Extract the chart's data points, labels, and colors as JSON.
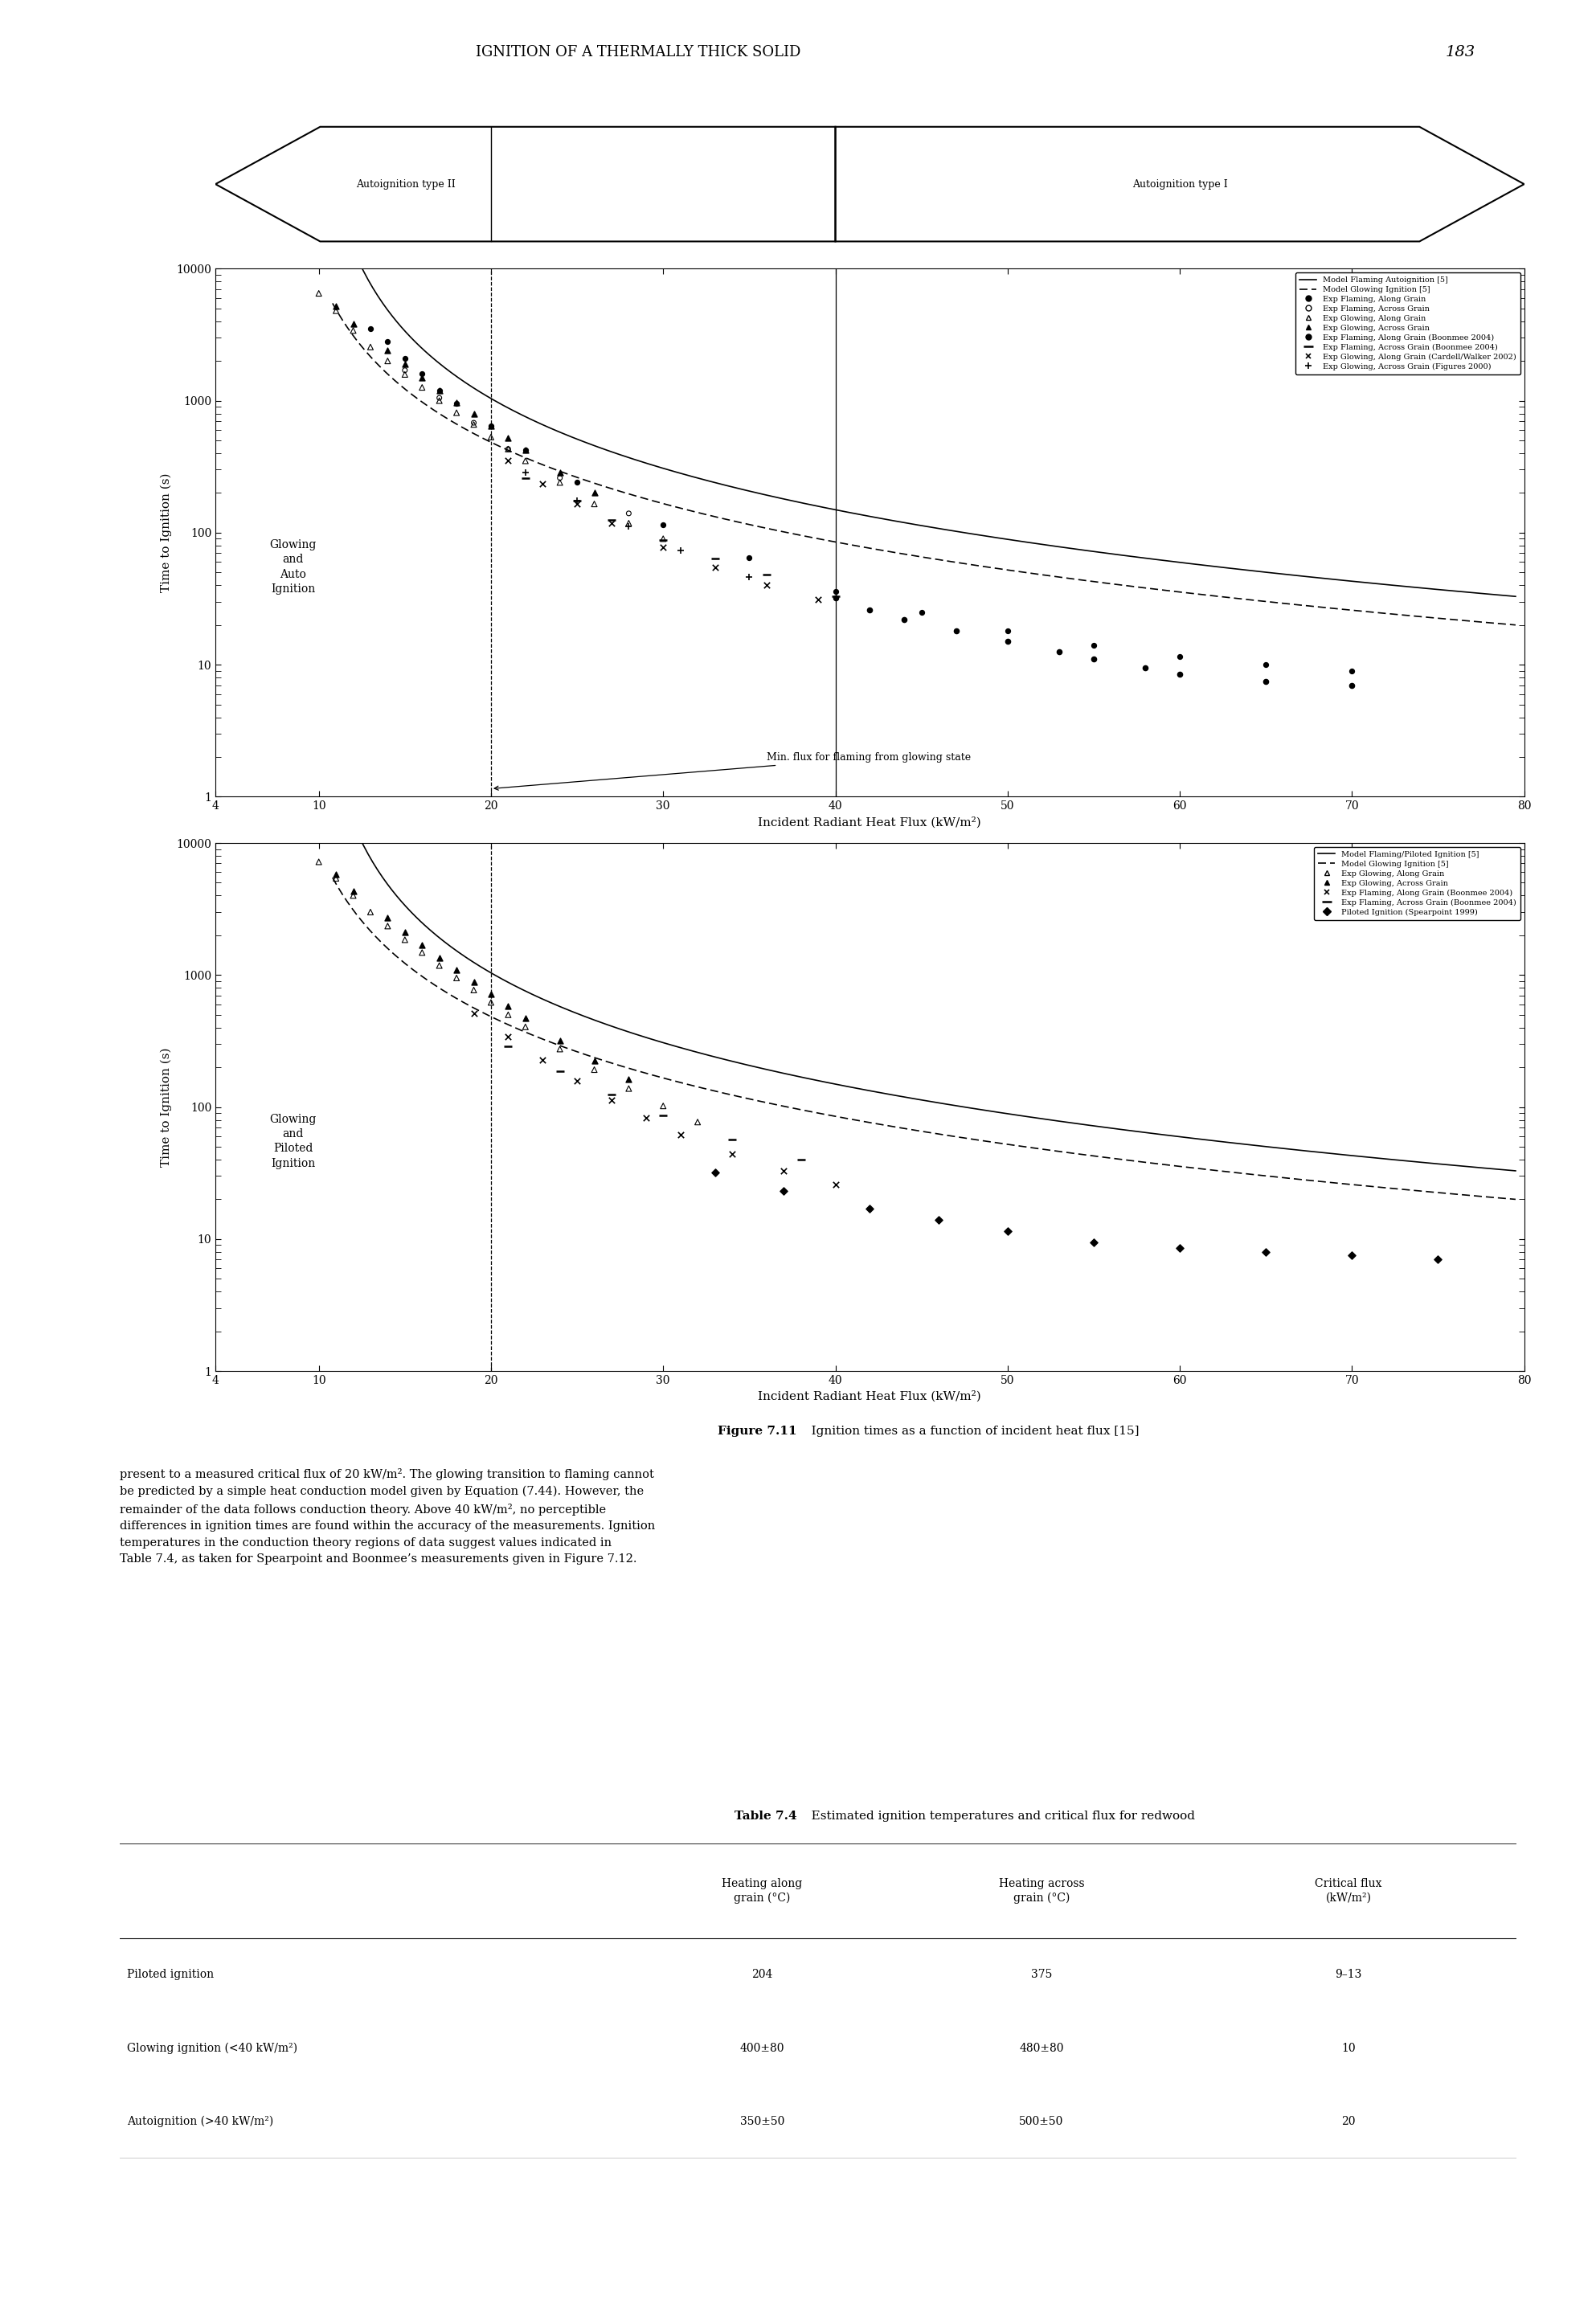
{
  "page_header": "IGNITION OF A THERMALLY THICK SOLID",
  "page_number": "183",
  "figure_caption_bold": "Figure 7.11",
  "figure_caption_rest": "   Ignition times as a function of incident heat flux [15]",
  "body_text": "present to a measured critical flux of 20 kW/m². The glowing transition to flaming cannot\nbe predicted by a simple heat conduction model given by Equation (7.44). However, the\nremainder of the data follows conduction theory. Above 40 kW/m², no perceptible\ndifferences in ignition times are found within the accuracy of the measurements. Ignition\ntemperatures in the conduction theory regions of data suggest values indicated in\nTable 7.4, as taken for Spearpoint and Boonmee’s measurements given in Figure 7.12.",
  "table_title_bold": "Table 7.4",
  "table_title_rest": "   Estimated ignition temperatures and critical flux for redwood",
  "table_col_headers": [
    "",
    "Heating along\ngrain (°C)",
    "Heating across\ngrain (°C)",
    "Critical flux\n(kW/m²)"
  ],
  "table_rows": [
    [
      "Piloted ignition",
      "204",
      "375",
      "9–13"
    ],
    [
      "Glowing ignition (<40 kW/m²)",
      "400±80",
      "480±80",
      "10"
    ],
    [
      "Autoignition (>40 kW/m²)",
      "350±50",
      "500±50",
      "20"
    ]
  ],
  "plot1_legend": [
    "Model Flaming Autoignition [5]",
    "Model Glowing Ignition [5]",
    "Exp Flaming, Along Grain",
    "Exp Flaming, Across Grain",
    "Exp Glowing, Along Grain",
    "Exp Glowing, Across Grain",
    "Exp Flaming, Along Grain (Boonmee 2004)",
    "Exp Flaming, Across Grain (Boonmee 2004)",
    "Exp Glowing, Along Grain (Cardell/Walker 2002)",
    "Exp Glowing, Across Grain (Figures 2000)"
  ],
  "plot2_legend": [
    "Model Flaming/Piloted Ignition [5]",
    "Model Glowing Ignition [5]",
    "Exp Glowing, Along Grain",
    "Exp Glowing, Across Grain",
    "Exp Flaming, Along Grain (Boonmee 2004)",
    "Exp Flaming, Across Grain (Boonmee 2004)",
    "Piloted Ignition (Spearpoint 1999)"
  ],
  "xlim": [
    4,
    80
  ],
  "ylim": [
    1,
    10000
  ],
  "xticks": [
    4,
    10,
    20,
    30,
    40,
    50,
    60,
    70,
    80
  ],
  "yticks": [
    1,
    10,
    100,
    1000,
    10000
  ],
  "ytick_labels": [
    "1",
    "10",
    "100",
    "1000",
    "10000"
  ],
  "xlabel": "Incident Radiant Heat Flux (kW/m²)",
  "ylabel": "Time to Ignition (s)",
  "arrow_left": "Autoignition type II",
  "arrow_right": "Autoignition type I",
  "plot1_region_label": "Glowing\nand\nAuto\nIgnition",
  "plot2_region_label": "Glowing\nand\nPiloted\nIgnition",
  "min_flux_annotation": "Min. flux for flaming from glowing state",
  "vline1_x": 20,
  "vline2_x": 40,
  "model_x_start": 10.8,
  "model_x_end": 79.5,
  "model_C_flaming": 75000,
  "model_qcr_flaming": 9.5,
  "model_n_flaming": 1.82,
  "model_C_glowing": 48000,
  "model_qcr_glowing": 7.5,
  "model_n_glowing": 1.82
}
